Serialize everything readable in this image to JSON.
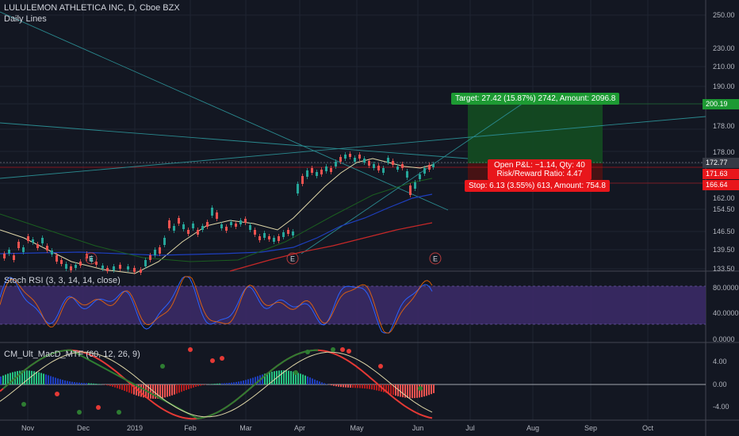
{
  "main_title": "LULULEMON ATHLETICA INC, D, Cboe BZX",
  "subtitle": "Daily Lines",
  "colors": {
    "bg": "#131722",
    "grid": "#1f2432",
    "up": "#26a69a",
    "down": "#ef5350",
    "target_fill": "#134a22",
    "stop_fill": "#4a1214",
    "target_label": "#1d9a33",
    "stop_label": "#e8161b",
    "rsi_band": "#3b2a66"
  },
  "price_axis": {
    "ticks": [
      "250.00",
      "230.00",
      "210.00",
      "190.00",
      "178.00",
      "162.00",
      "154.50",
      "146.50",
      "139.50",
      "133.50"
    ],
    "badges": [
      {
        "text": "200.19",
        "color": "#1d9a33"
      },
      {
        "text": "172.77",
        "color": "#363a45"
      },
      {
        "text": "171.63",
        "color": "#e8161b"
      },
      {
        "text": "166.64",
        "color": "#e8161b"
      }
    ]
  },
  "position": {
    "target": "Target: 27.42 (15.87%) 2742, Amount: 2096.8",
    "open_pl": "Open P&L: −1.14, Qty: 40",
    "rr": "Risk/Reward Ratio: 4.47",
    "stop": "Stop: 6.13 (3.55%) 613, Amount: 754.8"
  },
  "earnings_markers": [
    "E",
    "E",
    "E"
  ],
  "stoch": {
    "title": "Stoch RSI (3, 3, 14, 14, close)",
    "ticks": [
      "80.0000",
      "40.0000",
      "0.0000"
    ]
  },
  "macd": {
    "title": "CM_Ult_MacD_MTF (60, 12, 26, 9)",
    "ticks": [
      "4.00",
      "0.00",
      "-4.00"
    ]
  },
  "time_axis": [
    "Nov",
    "Dec",
    "2019",
    "Feb",
    "Mar",
    "Apr",
    "May",
    "Jun",
    "Jul",
    "Aug",
    "Sep",
    "Oct"
  ]
}
